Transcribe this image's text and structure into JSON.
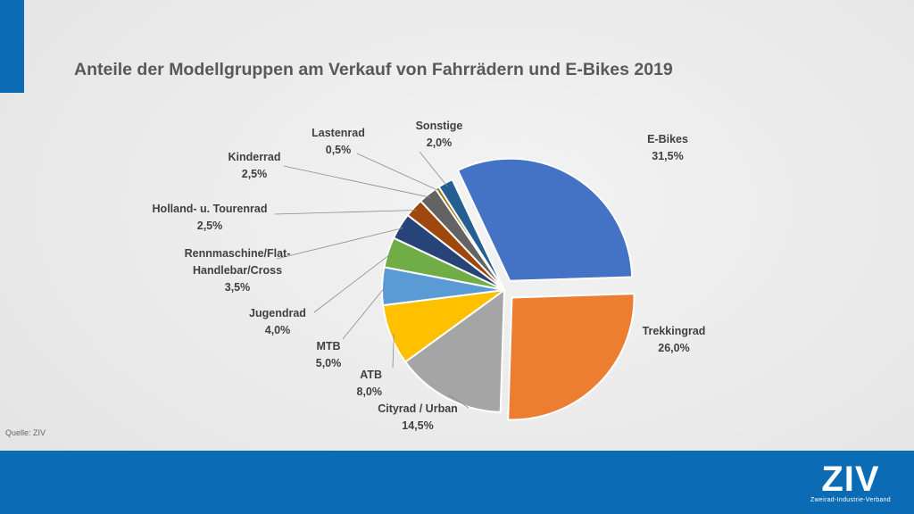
{
  "title": "Anteile der Modellgruppen am Verkauf von Fahrrädern und E-Bikes 2019",
  "source": "Quelle: ZIV",
  "logo": {
    "mark": "ZIV",
    "subtitle": "Zweirad-Industrie-Verband"
  },
  "colors": {
    "accent": "#0b6cb5",
    "footer": "#0b6cb5"
  },
  "chart_data": {
    "type": "pie",
    "title": "Anteile der Modellgruppen am Verkauf von Fahrrädern und E-Bikes 2019",
    "slices": [
      {
        "label": [
          "E-Bikes"
        ],
        "value": 31.5,
        "value_label": "31,5%",
        "color": "#4472c4",
        "exploded": true
      },
      {
        "label": [
          "Trekkingrad"
        ],
        "value": 26.0,
        "value_label": "26,0%",
        "color": "#ed7d31",
        "exploded": true
      },
      {
        "label": [
          "Cityrad / Urban"
        ],
        "value": 14.5,
        "value_label": "14,5%",
        "color": "#a5a5a5",
        "exploded": false
      },
      {
        "label": [
          "ATB"
        ],
        "value": 8.0,
        "value_label": "8,0%",
        "color": "#ffc000",
        "exploded": false
      },
      {
        "label": [
          "MTB"
        ],
        "value": 5.0,
        "value_label": "5,0%",
        "color": "#5b9bd5",
        "exploded": false
      },
      {
        "label": [
          "Jugendrad"
        ],
        "value": 4.0,
        "value_label": "4,0%",
        "color": "#70ad47",
        "exploded": false
      },
      {
        "label": [
          "Rennmaschine/Flat-",
          "Handlebar/Cross"
        ],
        "value": 3.5,
        "value_label": "3,5%",
        "color": "#264478",
        "exploded": false
      },
      {
        "label": [
          "Holland- u. Tourenrad"
        ],
        "value": 2.5,
        "value_label": "2,5%",
        "color": "#9e480e",
        "exploded": false
      },
      {
        "label": [
          "Kinderrad"
        ],
        "value": 2.5,
        "value_label": "2,5%",
        "color": "#636363",
        "exploded": false
      },
      {
        "label": [
          "Lastenrad"
        ],
        "value": 0.5,
        "value_label": "0,5%",
        "color": "#997300",
        "exploded": false
      },
      {
        "label": [
          "Sonstige"
        ],
        "value": 2.0,
        "value_label": "2,0%",
        "color": "#255e91",
        "exploded": false
      }
    ]
  }
}
